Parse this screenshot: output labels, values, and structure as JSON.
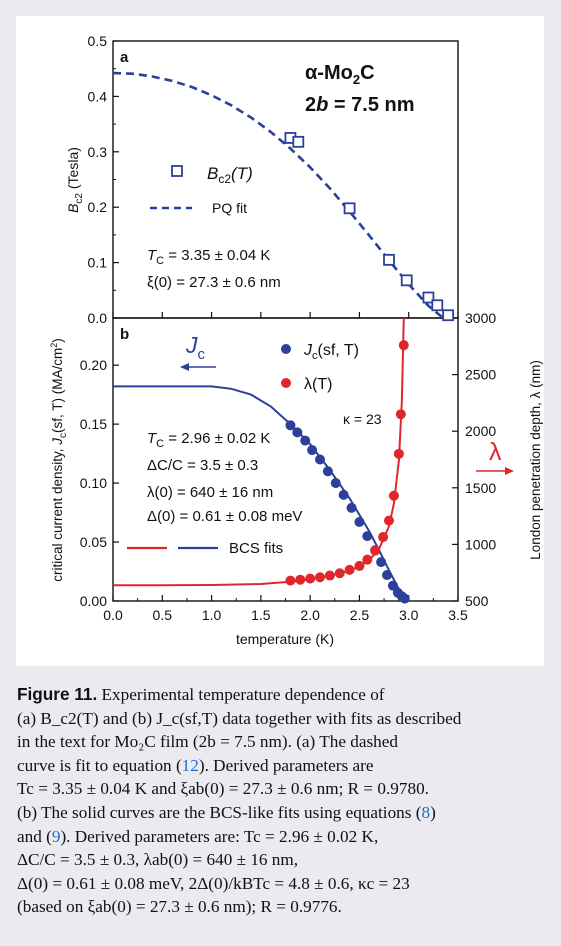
{
  "chart_data": [
    {
      "panel": "a",
      "type": "scatter",
      "title": "α-Mo2C",
      "subtitle": "2b = 7.5 nm",
      "xlabel": "",
      "ylabel": "Bc2 (Tesla)",
      "xlim": [
        0.0,
        3.5
      ],
      "ylim": [
        0.0,
        0.5
      ],
      "yticks": [
        "0.0",
        "0.1",
        "0.2",
        "0.3",
        "0.4",
        "0.5"
      ],
      "grid": false,
      "legend_position": "center-left",
      "series": [
        {
          "name": "Bc2(T)",
          "kind": "scatter",
          "color": "#2b3f9b",
          "x": [
            1.8,
            1.88,
            2.4,
            2.8,
            2.98,
            3.2,
            3.29,
            3.4
          ],
          "y": [
            0.325,
            0.318,
            0.198,
            0.105,
            0.068,
            0.037,
            0.023,
            0.005
          ]
        },
        {
          "name": "PQ fit",
          "kind": "dashed-line",
          "color": "#2b3f9b",
          "x": [
            0.0,
            0.2,
            0.4,
            0.6,
            0.8,
            1.0,
            1.2,
            1.4,
            1.6,
            1.8,
            2.0,
            2.2,
            2.4,
            2.6,
            2.8,
            3.0,
            3.2,
            3.35
          ],
          "y": [
            0.442,
            0.441,
            0.436,
            0.428,
            0.417,
            0.402,
            0.384,
            0.362,
            0.336,
            0.306,
            0.272,
            0.234,
            0.192,
            0.149,
            0.104,
            0.061,
            0.022,
            0.0
          ]
        }
      ],
      "annotations": [
        "TC = 3.35 ± 0.04 K",
        "ξ(0) = 27.3 ± 0.6 nm"
      ]
    },
    {
      "panel": "b",
      "type": "scatter",
      "xlabel": "temperature (K)",
      "ylabel": "critical current density,  Jc(sf, T) (MA/cm²)",
      "ylabel_right": "London penetration depth,  λ (nm)",
      "xlim": [
        0.0,
        3.5
      ],
      "ylim": [
        0.0,
        0.24
      ],
      "ylim_right": [
        500,
        3000
      ],
      "xticks": [
        "0.0",
        "0.5",
        "1.0",
        "1.5",
        "2.0",
        "2.5",
        "3.0",
        "3.5"
      ],
      "yticks": [
        "0.00",
        "0.05",
        "0.10",
        "0.15",
        "0.20"
      ],
      "yticks_right": [
        "500",
        "1000",
        "1500",
        "2000",
        "2500",
        "3000"
      ],
      "grid": false,
      "legend_position": "top-right",
      "series": [
        {
          "name": "Jc(sf, T)",
          "kind": "scatter",
          "axis": "left",
          "color": "#2b3f9b",
          "x": [
            1.8,
            1.87,
            1.95,
            2.02,
            2.1,
            2.18,
            2.26,
            2.34,
            2.42,
            2.5,
            2.58,
            2.66,
            2.72,
            2.78,
            2.84,
            2.89,
            2.93,
            2.96
          ],
          "y": [
            0.149,
            0.143,
            0.136,
            0.128,
            0.12,
            0.11,
            0.1,
            0.09,
            0.079,
            0.067,
            0.055,
            0.043,
            0.033,
            0.022,
            0.013,
            0.007,
            0.004,
            0.002
          ]
        },
        {
          "name": "λ(T)",
          "kind": "scatter",
          "axis": "right",
          "color": "#e0262b",
          "x": [
            1.8,
            1.9,
            2.0,
            2.1,
            2.2,
            2.3,
            2.4,
            2.5,
            2.58,
            2.66,
            2.74,
            2.8,
            2.85,
            2.9,
            2.92,
            2.95
          ],
          "y": [
            680,
            688,
            698,
            710,
            725,
            745,
            775,
            810,
            865,
            945,
            1065,
            1210,
            1430,
            1800,
            2150,
            2760
          ]
        },
        {
          "name": "BCS fits",
          "kind": "line",
          "axis": "left",
          "color": "#2b3f9b",
          "x": [
            0.0,
            0.5,
            1.0,
            1.2,
            1.4,
            1.6,
            1.8,
            2.0,
            2.2,
            2.4,
            2.6,
            2.7,
            2.8,
            2.9,
            2.96
          ],
          "y": [
            0.182,
            0.182,
            0.182,
            0.18,
            0.175,
            0.165,
            0.15,
            0.133,
            0.111,
            0.087,
            0.059,
            0.043,
            0.026,
            0.01,
            0.0
          ]
        },
        {
          "name": "BCS fits",
          "kind": "line",
          "axis": "right",
          "color": "#e0262b",
          "x": [
            0.0,
            0.5,
            1.0,
            1.5,
            1.8,
            2.0,
            2.2,
            2.4,
            2.5,
            2.6,
            2.7,
            2.8,
            2.85,
            2.9,
            2.93,
            2.95
          ],
          "y": [
            640,
            640,
            641,
            650,
            670,
            692,
            722,
            768,
            805,
            860,
            960,
            1160,
            1360,
            1740,
            2250,
            3000
          ]
        }
      ],
      "annotations": [
        "TC = 2.96 ± 0.02 K",
        "ΔC/C = 3.5 ± 0.3",
        "λ(0) = 640 ± 16 nm",
        "Δ(0) = 0.61 ± 0.08 meV",
        "κ = 23"
      ]
    }
  ],
  "labels": {
    "panel_a": "a",
    "panel_b": "b",
    "title_prefix": "α-Mo",
    "title_sub": "2",
    "title_suffix": "C",
    "thickness_left": "2",
    "thickness_italic": "b",
    "thickness_right": " = 7.5 nm",
    "legend_bc2_main": "B",
    "legend_bc2_sub": "c2",
    "legend_bc2_tail": "(T)",
    "legend_pq": "PQ fit",
    "tc_a_main": "T",
    "tc_a_sub": "C",
    "tc_a_tail": " = 3.35 ± 0.04 K",
    "xi_a": "ξ(0) = 27.3 ± 0.6 nm",
    "ylabel_a_main": "B",
    "ylabel_a_sub": "c2",
    "ylabel_a_tail": " (Tesla)",
    "jc_big_main": "J",
    "jc_big_sub": "c",
    "lambda_big": "λ",
    "legend_jc_main": "J",
    "legend_jc_sub": "c",
    "legend_jc_tail": "(sf, T)",
    "legend_lambda": "λ(T)",
    "kappa": "κ = 23",
    "tc_b_main": "T",
    "tc_b_sub": "C",
    "tc_b_tail": " = 2.96 ± 0.02 K",
    "dc_b": "ΔC/C = 3.5 ± 0.3",
    "lambda0_b": "λ(0) = 640 ± 16 nm",
    "delta0_b": "Δ(0) = 0.61 ± 0.08 meV",
    "legend_bcs": "BCS fits",
    "ylabel_b_pre": "critical current density,  ",
    "ylabel_b_main": "J",
    "ylabel_b_sub": "c",
    "ylabel_b_tail": "(sf, T) (MA/cm",
    "ylabel_b_sup": "2",
    "ylabel_b_end": ")",
    "ylabel_right_text": "London penetration depth,  λ (nm)",
    "xlabel": "temperature (K)"
  },
  "caption": {
    "fig_label": "Figure 11.",
    "line1": "  Experimental temperature dependence of",
    "line2": "(a) B_c2(T) and (b) J_c(sf,T) data together with fits as described",
    "line3": "in the text for Mo₂C film (2b = 7.5 nm). (a) The dashed",
    "line4_pre": "curve is fit to equation (",
    "line4_ref": "12",
    "line4_post": "). Derived parameters are",
    "line5": "Tc = 3.35 ± 0.04 K and ξab(0) = 27.3 ± 0.6 nm; R = 0.9780.",
    "line6_pre": "(b) The solid curves are the BCS-like fits using equations (",
    "line6_ref": "8",
    "line6_post": ")",
    "line7_pre": "and (",
    "line7_ref": "9",
    "line7_post": "). Derived parameters are: Tc = 2.96 ± 0.02 K,",
    "line8": "ΔC/C = 3.5 ± 0.3, λab(0) = 640 ± 16 nm,",
    "line9": "Δ(0) = 0.61 ± 0.08 meV, 2Δ(0)/kBTc = 4.8 ± 0.6, κc = 23",
    "line10": "(based on ξab(0) = 27.3 ± 0.6 nm); R = 0.9776."
  },
  "colors": {
    "blue": "#2b3f9b",
    "red": "#e0262b",
    "link": "#1e6fd0",
    "frame": "#eaeaf0"
  }
}
